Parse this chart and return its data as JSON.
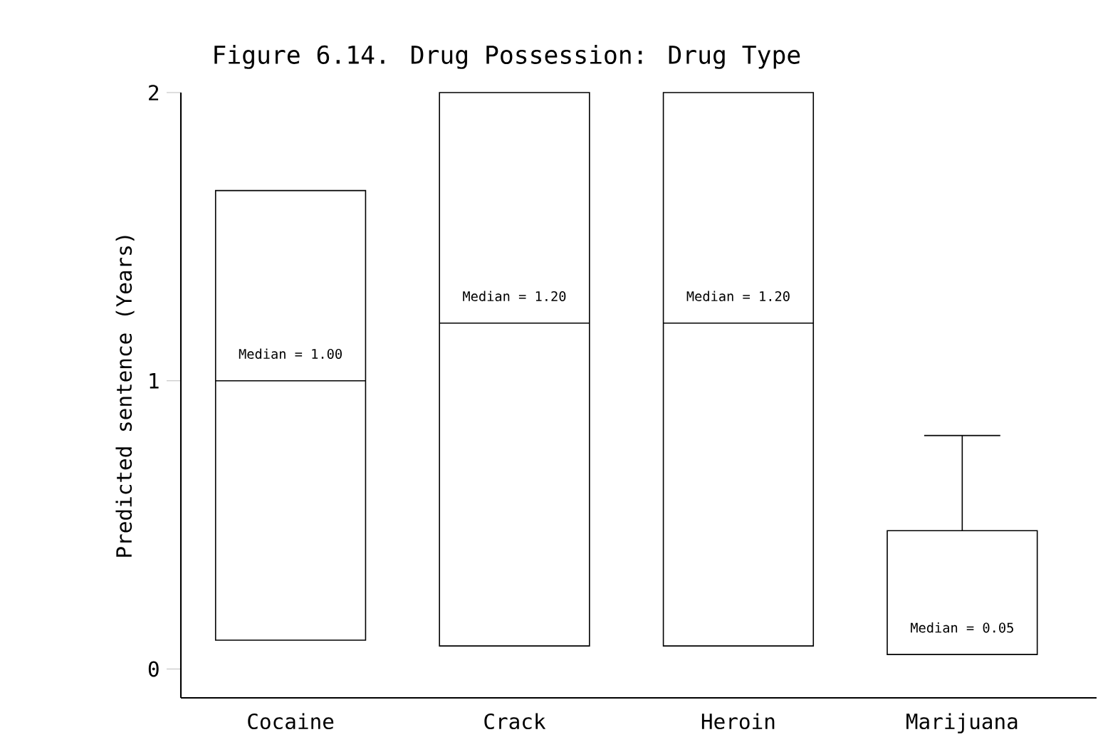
{
  "chart_data": {
    "type": "box",
    "title": "Figure 6.14. Drug Possession: Drug Type",
    "ylabel": "Predicted sentence (Years)",
    "categories": [
      "Cocaine",
      "Crack",
      "Heroin",
      "Marijuana"
    ],
    "boxes": [
      {
        "low": 0.1,
        "q1": 0.1,
        "median": 1.0,
        "q3": 1.66,
        "high": 1.66
      },
      {
        "low": 0.08,
        "q1": 0.08,
        "median": 1.2,
        "q3": 2.0,
        "high": 2.0
      },
      {
        "low": 0.08,
        "q1": 0.08,
        "median": 1.2,
        "q3": 2.0,
        "high": 2.0
      },
      {
        "low": 0.05,
        "q1": 0.05,
        "median": 0.05,
        "q3": 0.48,
        "high": 0.81
      }
    ],
    "annotations": [
      "Median = 1.00",
      "Median = 1.20",
      "Median = 1.20",
      "Median = 0.05"
    ],
    "ylim": [
      -0.1,
      2
    ],
    "yticks": [
      0,
      1,
      2
    ],
    "grid": false
  }
}
